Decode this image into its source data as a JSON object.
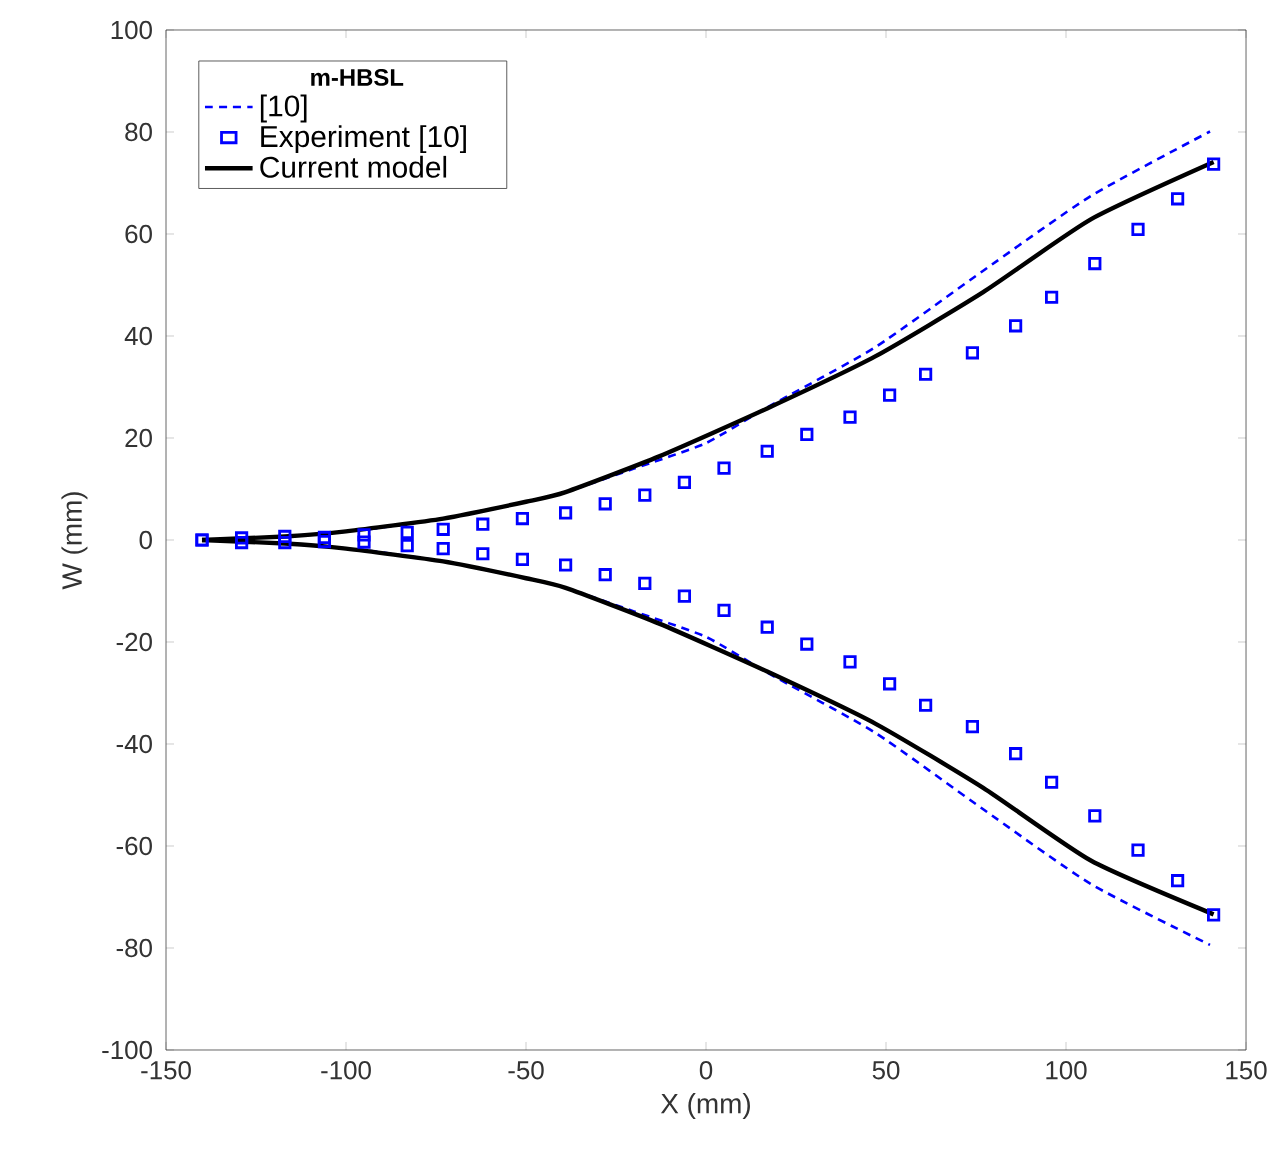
{
  "chart_data": {
    "type": "line",
    "xlabel": "X (mm)",
    "ylabel": "W (mm)",
    "legend_title": "m-HBSL",
    "legend": "top left",
    "grid": false,
    "xlim": [
      -150,
      150
    ],
    "ylim": [
      -100,
      100
    ],
    "xticks": [
      -150,
      -100,
      -50,
      0,
      50,
      100,
      150
    ],
    "yticks": [
      -100,
      -80,
      -60,
      -40,
      -20,
      0,
      20,
      40,
      60,
      80,
      100
    ],
    "series": [
      {
        "name": "[10]",
        "line_style": "dashed",
        "marker": "none",
        "color": "#0000ff",
        "x": [
          -140,
          -117,
          -95,
          -73,
          -50,
          -39,
          -20,
          0,
          17,
          47,
          77,
          107,
          140
        ],
        "values": [
          0,
          0.7,
          2,
          4.2,
          7.5,
          9.4,
          14,
          19,
          26,
          37.8,
          52.8,
          67.5,
          80.1
        ]
      },
      {
        "line_style": "dashed",
        "marker": "none",
        "color": "#0000ff",
        "x": [
          -140,
          -117,
          -95,
          -73,
          -50,
          -39,
          -20,
          0,
          17,
          47,
          77,
          107,
          140
        ],
        "values": [
          0,
          -0.7,
          -2,
          -4.2,
          -7.5,
          -9.4,
          -14,
          -19,
          -26,
          -37.8,
          -52.8,
          -67.5,
          -79.4
        ]
      },
      {
        "name": "Experiment [10]",
        "type": "scatter",
        "marker": "square",
        "color": "#0000ff",
        "x": [
          -140,
          -129,
          -117,
          -106,
          -95,
          -83,
          -73,
          -62,
          -51,
          -39,
          -28,
          -17,
          -6,
          5,
          17,
          28,
          40,
          51,
          61,
          74,
          86,
          96,
          108,
          120,
          131,
          141
        ],
        "values": [
          0,
          0.4,
          0.7,
          0.5,
          1,
          1.5,
          2.1,
          3.1,
          4.2,
          5.3,
          7.1,
          8.8,
          11.3,
          14.1,
          17.4,
          20.7,
          24.1,
          28.4,
          32.5,
          36.7,
          42,
          47.6,
          54.2,
          60.9,
          66.9,
          73.7
        ]
      },
      {
        "type": "scatter",
        "marker": "square",
        "color": "#0000ff",
        "x": [
          -140,
          -129,
          -117,
          -106,
          -95,
          -83,
          -73,
          -62,
          -51,
          -39,
          -28,
          -17,
          -6,
          5,
          17,
          28,
          40,
          51,
          61,
          74,
          86,
          96,
          108,
          120,
          131,
          141
        ],
        "values": [
          0,
          -0.5,
          -0.5,
          -0.3,
          -0.4,
          -1.1,
          -1.7,
          -2.7,
          -3.8,
          -4.9,
          -6.8,
          -8.5,
          -11,
          -13.8,
          -17.1,
          -20.4,
          -23.9,
          -28.2,
          -32.4,
          -36.6,
          -41.9,
          -47.5,
          -54.1,
          -60.8,
          -66.8,
          -73.5
        ]
      },
      {
        "name": "Current model",
        "line_style": "solid",
        "marker": "none",
        "color": "#000000",
        "x": [
          -140,
          -117,
          -100,
          -73,
          -50,
          -39,
          -13,
          17,
          47,
          77,
          107,
          141
        ],
        "values": [
          0,
          0.7,
          1.7,
          4.2,
          7.5,
          9.4,
          16.4,
          25.8,
          36,
          48.6,
          62.9,
          74.1
        ]
      },
      {
        "line_style": "solid",
        "marker": "none",
        "color": "#000000",
        "x": [
          -140,
          -117,
          -100,
          -73,
          -50,
          -39,
          -13,
          17,
          47,
          77,
          107,
          141
        ],
        "values": [
          0,
          -0.7,
          -1.7,
          -4.2,
          -7.5,
          -9.4,
          -16.4,
          -25.8,
          -36,
          -48.6,
          -62.9,
          -73.4
        ]
      }
    ]
  }
}
